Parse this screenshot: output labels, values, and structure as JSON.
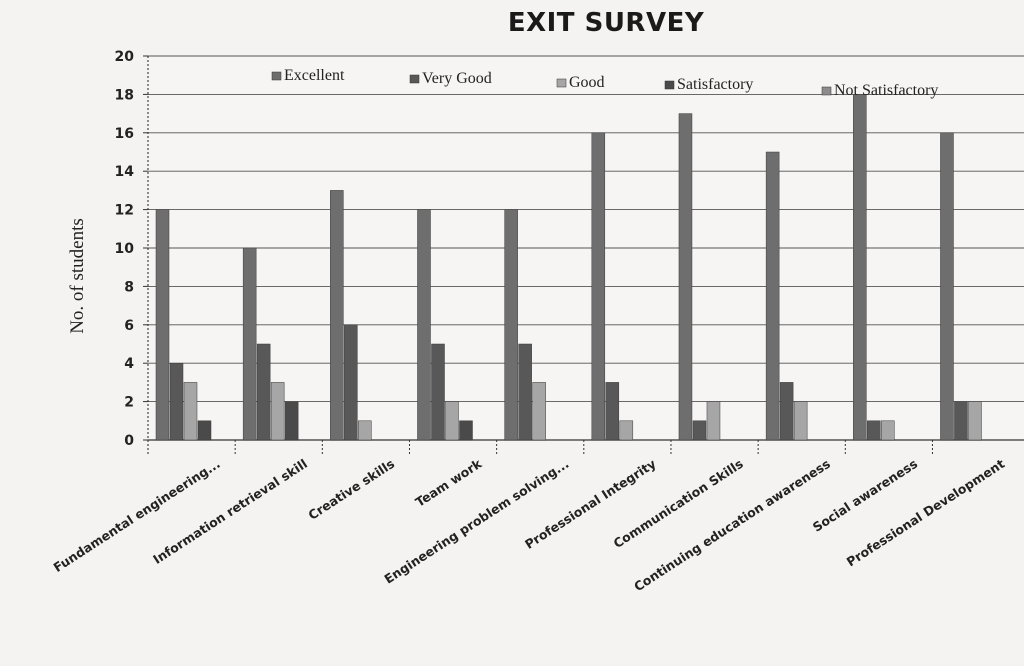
{
  "chart_data": {
    "type": "bar",
    "title": "EXIT SURVEY",
    "xlabel": "",
    "ylabel": "No. of students",
    "ylim": [
      0,
      20
    ],
    "yticks": [
      0,
      2,
      4,
      6,
      8,
      10,
      12,
      14,
      16,
      18,
      20
    ],
    "grid": true,
    "legend_position": "top",
    "categories": [
      "Fundamental engineering...",
      "Information retrieval skill",
      "Creative skills",
      "Team work",
      "Engineering problem solving...",
      "Professional Integrity",
      "Communication Skills",
      "Continuing education awareness",
      "Social awareness",
      "Professional Development"
    ],
    "series": [
      {
        "name": "Excellent",
        "color": "#6e6e6e",
        "values": [
          12,
          10,
          13,
          12,
          12,
          16,
          17,
          15,
          18,
          16
        ]
      },
      {
        "name": "Very Good",
        "color": "#585858",
        "values": [
          4,
          5,
          6,
          5,
          5,
          3,
          1,
          3,
          1,
          2
        ]
      },
      {
        "name": "Good",
        "color": "#a6a6a6",
        "values": [
          3,
          3,
          1,
          2,
          3,
          1,
          2,
          2,
          1,
          2
        ]
      },
      {
        "name": "Satisfactory",
        "color": "#4a4a4a",
        "values": [
          1,
          2,
          0,
          1,
          0,
          0,
          0,
          0,
          0,
          0
        ]
      },
      {
        "name": "Not Satisfactory",
        "color": "#8c8c8c",
        "values": [
          0,
          0,
          0,
          0,
          0,
          0,
          0,
          0,
          0,
          0
        ]
      }
    ]
  }
}
